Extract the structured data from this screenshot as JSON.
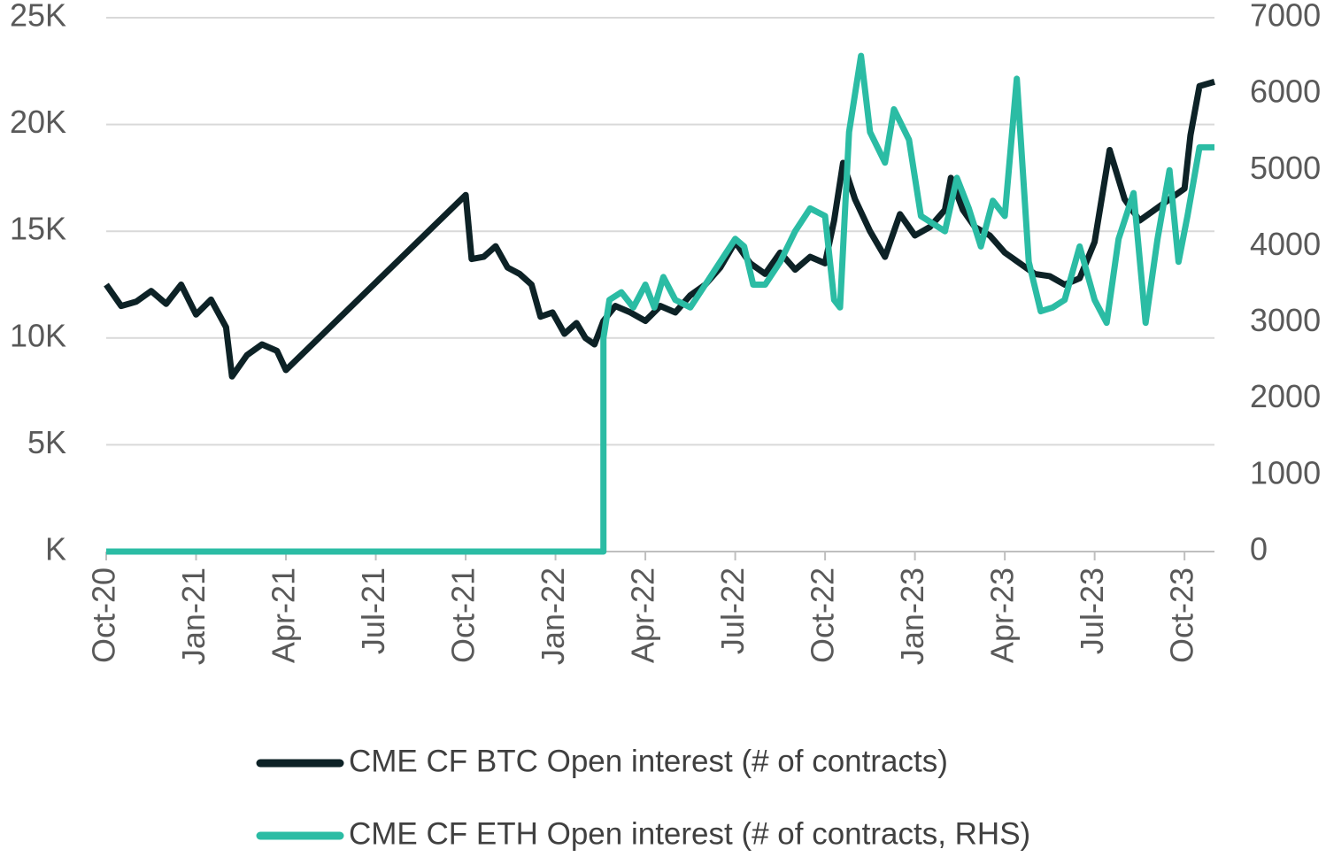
{
  "chart_data": {
    "type": "line",
    "xlim": [
      0,
      37
    ],
    "xticks": [
      {
        "value": 0,
        "label": "Oct-20"
      },
      {
        "value": 3,
        "label": "Jan-21"
      },
      {
        "value": 6,
        "label": "Apr-21"
      },
      {
        "value": 9,
        "label": "Jul-21"
      },
      {
        "value": 12,
        "label": "Oct-21"
      },
      {
        "value": 15,
        "label": "Jan-22"
      },
      {
        "value": 18,
        "label": "Apr-22"
      },
      {
        "value": 21,
        "label": "Jul-22"
      },
      {
        "value": 24,
        "label": "Oct-22"
      },
      {
        "value": 27,
        "label": "Jan-23"
      },
      {
        "value": 30,
        "label": "Apr-23"
      },
      {
        "value": 33,
        "label": "Jul-23"
      },
      {
        "value": 36,
        "label": "Oct-23"
      }
    ],
    "ylim": [
      0,
      25000
    ],
    "yticks": [
      {
        "value": 0,
        "label": "K"
      },
      {
        "value": 5000,
        "label": "5K"
      },
      {
        "value": 10000,
        "label": "10K"
      },
      {
        "value": 15000,
        "label": "15K"
      },
      {
        "value": 20000,
        "label": "20K"
      },
      {
        "value": 25000,
        "label": "25K"
      }
    ],
    "y2lim": [
      0,
      7000
    ],
    "y2ticks": [
      0,
      1000,
      2000,
      3000,
      4000,
      5000,
      6000,
      7000
    ],
    "grid": true,
    "legend": "bottom",
    "series": [
      {
        "name": "CME CF BTC Open interest (# of contracts)",
        "color": "#0d2226",
        "x": [
          0,
          0.5,
          1,
          1.5,
          2,
          2.5,
          3,
          3.5,
          4,
          4.2,
          4.7,
          5.2,
          5.7,
          6,
          12,
          12.2,
          12.6,
          13,
          13.4,
          13.8,
          14.2,
          14.5,
          14.9,
          15.3,
          15.7,
          16,
          16.3,
          16.6,
          17,
          17.5,
          18,
          18.5,
          19,
          19.5,
          20,
          20.5,
          21,
          21.5,
          22,
          22.5,
          23,
          23.5,
          24,
          24.3,
          24.6,
          25,
          25.5,
          26,
          26.5,
          27,
          27.5,
          28,
          28.2,
          28.6,
          29,
          29.5,
          30,
          30.5,
          31,
          31.5,
          32,
          32.5,
          33,
          33.5,
          34,
          34.5,
          35,
          35.5,
          36,
          36.2,
          36.5,
          37
        ],
        "values": [
          12500,
          11500,
          11700,
          12200,
          11600,
          12500,
          11100,
          11800,
          10500,
          8200,
          9200,
          9700,
          9400,
          8500,
          16700,
          13700,
          13800,
          14300,
          13300,
          13000,
          12500,
          11000,
          11200,
          10200,
          10700,
          10000,
          9700,
          10800,
          11500,
          11200,
          10800,
          11500,
          11200,
          12000,
          12500,
          13300,
          14500,
          13500,
          13000,
          14000,
          13200,
          13800,
          13500,
          15500,
          18200,
          16500,
          15000,
          13800,
          15800,
          14800,
          15200,
          16000,
          17500,
          16000,
          15200,
          14800,
          14000,
          13500,
          13000,
          12900,
          12500,
          12800,
          14500,
          18800,
          16500,
          15500,
          16000,
          16500,
          17000,
          19500,
          21800,
          22000
        ]
      },
      {
        "name": "CME CF ETH Open interest (# of contracts, RHS)",
        "color": "#2bbca4",
        "axis": "y2",
        "x": [
          0,
          16.6,
          16.6,
          16.8,
          17.2,
          17.6,
          18,
          18.3,
          18.6,
          19,
          19.5,
          20,
          20.5,
          21,
          21.3,
          21.6,
          22,
          22.5,
          23,
          23.5,
          24,
          24.3,
          24.5,
          24.8,
          25.2,
          25.5,
          26,
          26.3,
          26.8,
          27.2,
          27.6,
          28,
          28.4,
          28.8,
          29.2,
          29.6,
          30,
          30.4,
          30.8,
          31.2,
          31.6,
          32,
          32.5,
          33,
          33.4,
          33.8,
          34.3,
          34.7,
          35.1,
          35.5,
          35.8,
          36.1,
          36.5,
          37
        ],
        "values": [
          0,
          0,
          2800,
          3300,
          3400,
          3200,
          3500,
          3200,
          3600,
          3300,
          3200,
          3500,
          3800,
          4100,
          4000,
          3500,
          3500,
          3800,
          4200,
          4500,
          4400,
          3300,
          3200,
          5500,
          6500,
          5500,
          5100,
          5800,
          5400,
          4400,
          4300,
          4200,
          4900,
          4500,
          4000,
          4600,
          4400,
          6200,
          3800,
          3150,
          3200,
          3300,
          4000,
          3300,
          3000,
          4100,
          4700,
          3000,
          4100,
          5000,
          3800,
          4400,
          5300,
          5300
        ]
      }
    ]
  }
}
